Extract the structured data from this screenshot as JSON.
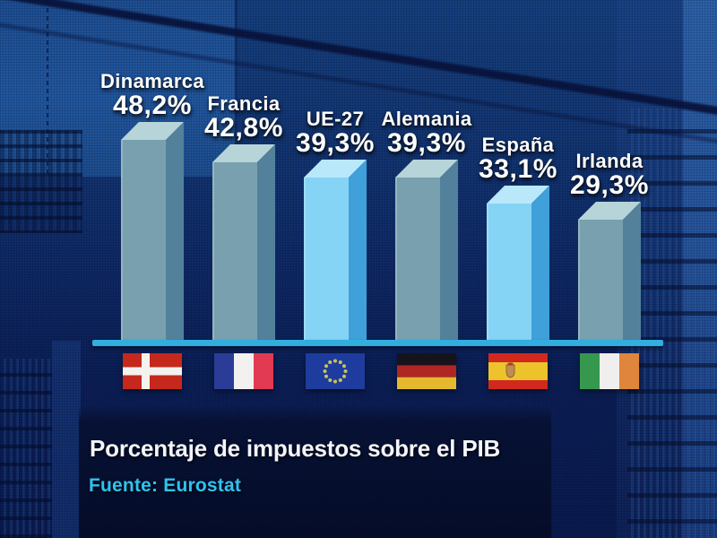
{
  "chart_data": {
    "type": "bar",
    "title": "Porcentaje de impuestos sobre el PIB",
    "source": "Fuente: Eurostat",
    "unit": "%",
    "ylim": [
      0,
      50
    ],
    "grid": "off",
    "legend": "none",
    "categories": [
      "Dinamarca",
      "Francia",
      "UE-27",
      "Alemania",
      "España",
      "Irlanda"
    ],
    "values": [
      48.2,
      42.8,
      39.3,
      39.3,
      33.1,
      29.3
    ],
    "value_labels": [
      "48,2%",
      "42,8%",
      "39,3%",
      "39,3%",
      "33,1%",
      "29,3%"
    ],
    "flags": [
      "denmark",
      "france",
      "european-union",
      "germany",
      "spain",
      "ireland"
    ],
    "highlighted_categories": [
      "UE-27",
      "España"
    ]
  },
  "footer": {
    "title": "Porcentaje de impuestos sobre el PIB",
    "source": "Fuente: Eurostat"
  },
  "colors": {
    "bar_front": "#78a0ae",
    "bar_side": "#53819b",
    "bar_top": "#b7d4d8",
    "bar_highlight_front": "#85d3f5",
    "bar_highlight_side": "#3fa0da",
    "bar_highlight_top": "#b9e8fb",
    "baseline": "#31aede",
    "label_text": "#ffffff",
    "title_text": "#f3f5f9",
    "source_text": "#2fc3ee"
  }
}
